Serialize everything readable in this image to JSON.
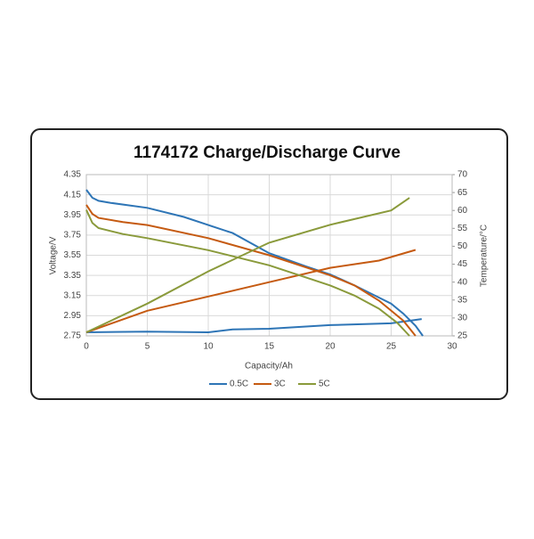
{
  "chart_data": {
    "type": "line",
    "title": "1174172  Charge/Discharge Curve",
    "x_label": "Capacity/Ah",
    "y_label": "Voltage/V",
    "y2_label": "Temperature/°C",
    "xlim": [
      0,
      30
    ],
    "xticks": [
      0,
      5,
      10,
      15,
      20,
      25,
      30
    ],
    "ylim": [
      2.75,
      4.35
    ],
    "yticks": [
      2.75,
      2.95,
      3.15,
      3.35,
      3.55,
      3.75,
      3.95,
      4.15,
      4.35
    ],
    "y2lim": [
      25,
      70
    ],
    "y2ticks": [
      25,
      30,
      35,
      40,
      45,
      50,
      55,
      60,
      65,
      70
    ],
    "grid": true,
    "series": [
      {
        "name": "0.5C",
        "color": "#2e75b6",
        "x": [
          0,
          0.5,
          1,
          2,
          5,
          8,
          10,
          12,
          15,
          18,
          20,
          22,
          24,
          25,
          26,
          27,
          27.6
        ],
        "values": [
          4.2,
          4.12,
          4.09,
          4.07,
          4.02,
          3.93,
          3.85,
          3.77,
          3.57,
          3.44,
          3.36,
          3.25,
          3.13,
          3.07,
          2.97,
          2.85,
          2.75
        ],
        "temperature_x": [
          0,
          5,
          10,
          12,
          15,
          20,
          25,
          27.5
        ],
        "temperature": [
          26,
          26.2,
          26,
          26.8,
          27,
          28,
          28.5,
          29.7
        ]
      },
      {
        "name": "3C",
        "color": "#c55a11",
        "x": [
          0,
          0.5,
          1,
          3,
          5,
          10,
          15,
          20,
          22,
          24,
          26,
          27
        ],
        "values": [
          4.05,
          3.96,
          3.92,
          3.88,
          3.85,
          3.72,
          3.55,
          3.35,
          3.25,
          3.1,
          2.9,
          2.75
        ],
        "temperature_x": [
          0,
          5,
          10,
          15,
          20,
          24,
          27
        ],
        "temperature": [
          26,
          32,
          36,
          40,
          44,
          46,
          49
        ]
      },
      {
        "name": "5C",
        "color": "#8a9a3b",
        "x": [
          0,
          0.5,
          1,
          3,
          5,
          10,
          15,
          20,
          22,
          24,
          25.5,
          26.5
        ],
        "values": [
          4.0,
          3.87,
          3.82,
          3.76,
          3.72,
          3.6,
          3.45,
          3.25,
          3.15,
          3.02,
          2.88,
          2.75
        ],
        "temperature_x": [
          0,
          5,
          10,
          15,
          20,
          25,
          26.5
        ],
        "temperature": [
          26,
          34,
          43,
          51,
          56,
          60,
          63.5
        ]
      }
    ]
  }
}
